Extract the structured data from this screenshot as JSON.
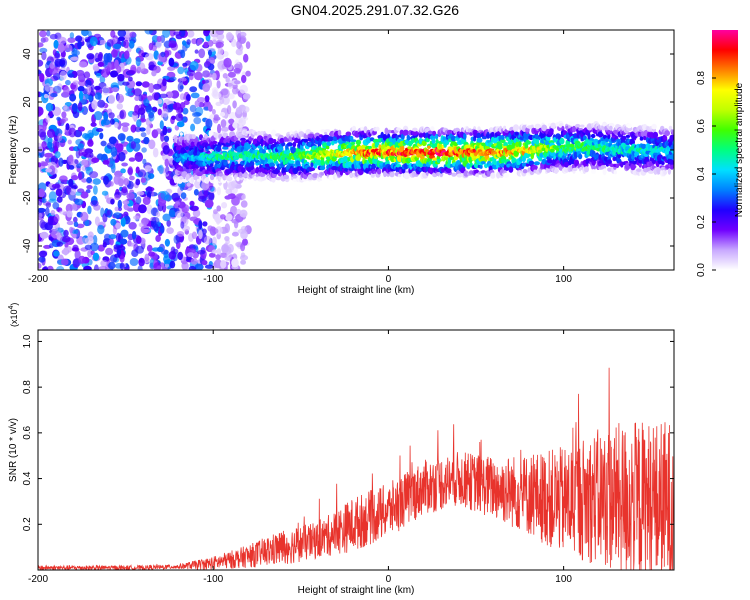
{
  "title": "GN04.2025.291.07.32.G26",
  "chart_data": [
    {
      "type": "heatmap",
      "name": "spectrogram",
      "xlabel": "Height of straight line (km)",
      "ylabel": "Frequency (Hz)",
      "xlim": [
        -200,
        163
      ],
      "ylim": [
        -50,
        50
      ],
      "xticks": [
        -200,
        -100,
        0,
        100
      ],
      "yticks": [
        -40,
        -20,
        0,
        20,
        40
      ],
      "colorbar": {
        "label": "Normalized spectral amplitude",
        "range": [
          0,
          1
        ],
        "ticks": [
          0.0,
          0.2,
          0.4,
          0.6,
          0.8
        ],
        "tick_labels": [
          "0.0",
          "0.2",
          "0.4",
          "0.6",
          "0.8"
        ],
        "colors": [
          "#ffffff",
          "#c8a8ff",
          "#7000ff",
          "#2000ff",
          "#0080ff",
          "#00e0ff",
          "#00ff80",
          "#40ff00",
          "#c0ff00",
          "#ffff00",
          "#ff8000",
          "#ff0000",
          "#ff00a0"
        ]
      },
      "ridge_track": [
        {
          "x": -120,
          "y": -3
        },
        {
          "x": -100,
          "y": -3
        },
        {
          "x": -80,
          "y": -2
        },
        {
          "x": -60,
          "y": -3
        },
        {
          "x": -40,
          "y": -2
        },
        {
          "x": -20,
          "y": -1
        },
        {
          "x": 0,
          "y": -1
        },
        {
          "x": 20,
          "y": -1
        },
        {
          "x": 40,
          "y": -1
        },
        {
          "x": 60,
          "y": -1
        },
        {
          "x": 80,
          "y": 0
        },
        {
          "x": 100,
          "y": 1
        },
        {
          "x": 120,
          "y": 1
        },
        {
          "x": 140,
          "y": 0
        },
        {
          "x": 163,
          "y": 0
        }
      ],
      "ridge_amplitude": [
        {
          "x": -120,
          "a": 0.35
        },
        {
          "x": -100,
          "a": 0.5
        },
        {
          "x": -60,
          "a": 0.55
        },
        {
          "x": -30,
          "a": 0.75
        },
        {
          "x": -10,
          "a": 0.9
        },
        {
          "x": 30,
          "a": 0.95
        },
        {
          "x": 70,
          "a": 0.85
        },
        {
          "x": 100,
          "a": 0.6
        },
        {
          "x": 130,
          "a": 0.5
        },
        {
          "x": 163,
          "a": 0.45
        }
      ],
      "noise_region": {
        "x_start": -200,
        "x_end": -100,
        "amplitude": 0.3
      }
    },
    {
      "type": "line",
      "name": "snr",
      "xlabel": "Height of straight line (km)",
      "ylabel": "SNR (10 * v/v)",
      "y_multiplier_label": "(x10",
      "y_multiplier_exp": "4",
      "y_multiplier_close": ")",
      "xlim": [
        -200,
        163
      ],
      "ylim": [
        0,
        1.05
      ],
      "xticks": [
        -200,
        -100,
        0,
        100
      ],
      "yticks": [
        0.2,
        0.4,
        0.6,
        0.8,
        1.0
      ],
      "color": "#e8332c",
      "envelope": [
        {
          "x": -200,
          "mean": 0.01,
          "spread": 0.01
        },
        {
          "x": -140,
          "mean": 0.01,
          "spread": 0.01
        },
        {
          "x": -120,
          "mean": 0.015,
          "spread": 0.01
        },
        {
          "x": -100,
          "mean": 0.03,
          "spread": 0.03
        },
        {
          "x": -80,
          "mean": 0.06,
          "spread": 0.05
        },
        {
          "x": -60,
          "mean": 0.1,
          "spread": 0.08
        },
        {
          "x": -40,
          "mean": 0.13,
          "spread": 0.08
        },
        {
          "x": -20,
          "mean": 0.2,
          "spread": 0.12
        },
        {
          "x": 0,
          "mean": 0.26,
          "spread": 0.12
        },
        {
          "x": 20,
          "mean": 0.36,
          "spread": 0.12
        },
        {
          "x": 40,
          "mean": 0.4,
          "spread": 0.12
        },
        {
          "x": 60,
          "mean": 0.36,
          "spread": 0.14
        },
        {
          "x": 80,
          "mean": 0.33,
          "spread": 0.18
        },
        {
          "x": 100,
          "mean": 0.3,
          "spread": 0.24
        },
        {
          "x": 120,
          "mean": 0.32,
          "spread": 0.3
        },
        {
          "x": 140,
          "mean": 0.3,
          "spread": 0.36
        },
        {
          "x": 163,
          "mean": 0.28,
          "spread": 0.38
        }
      ]
    }
  ]
}
